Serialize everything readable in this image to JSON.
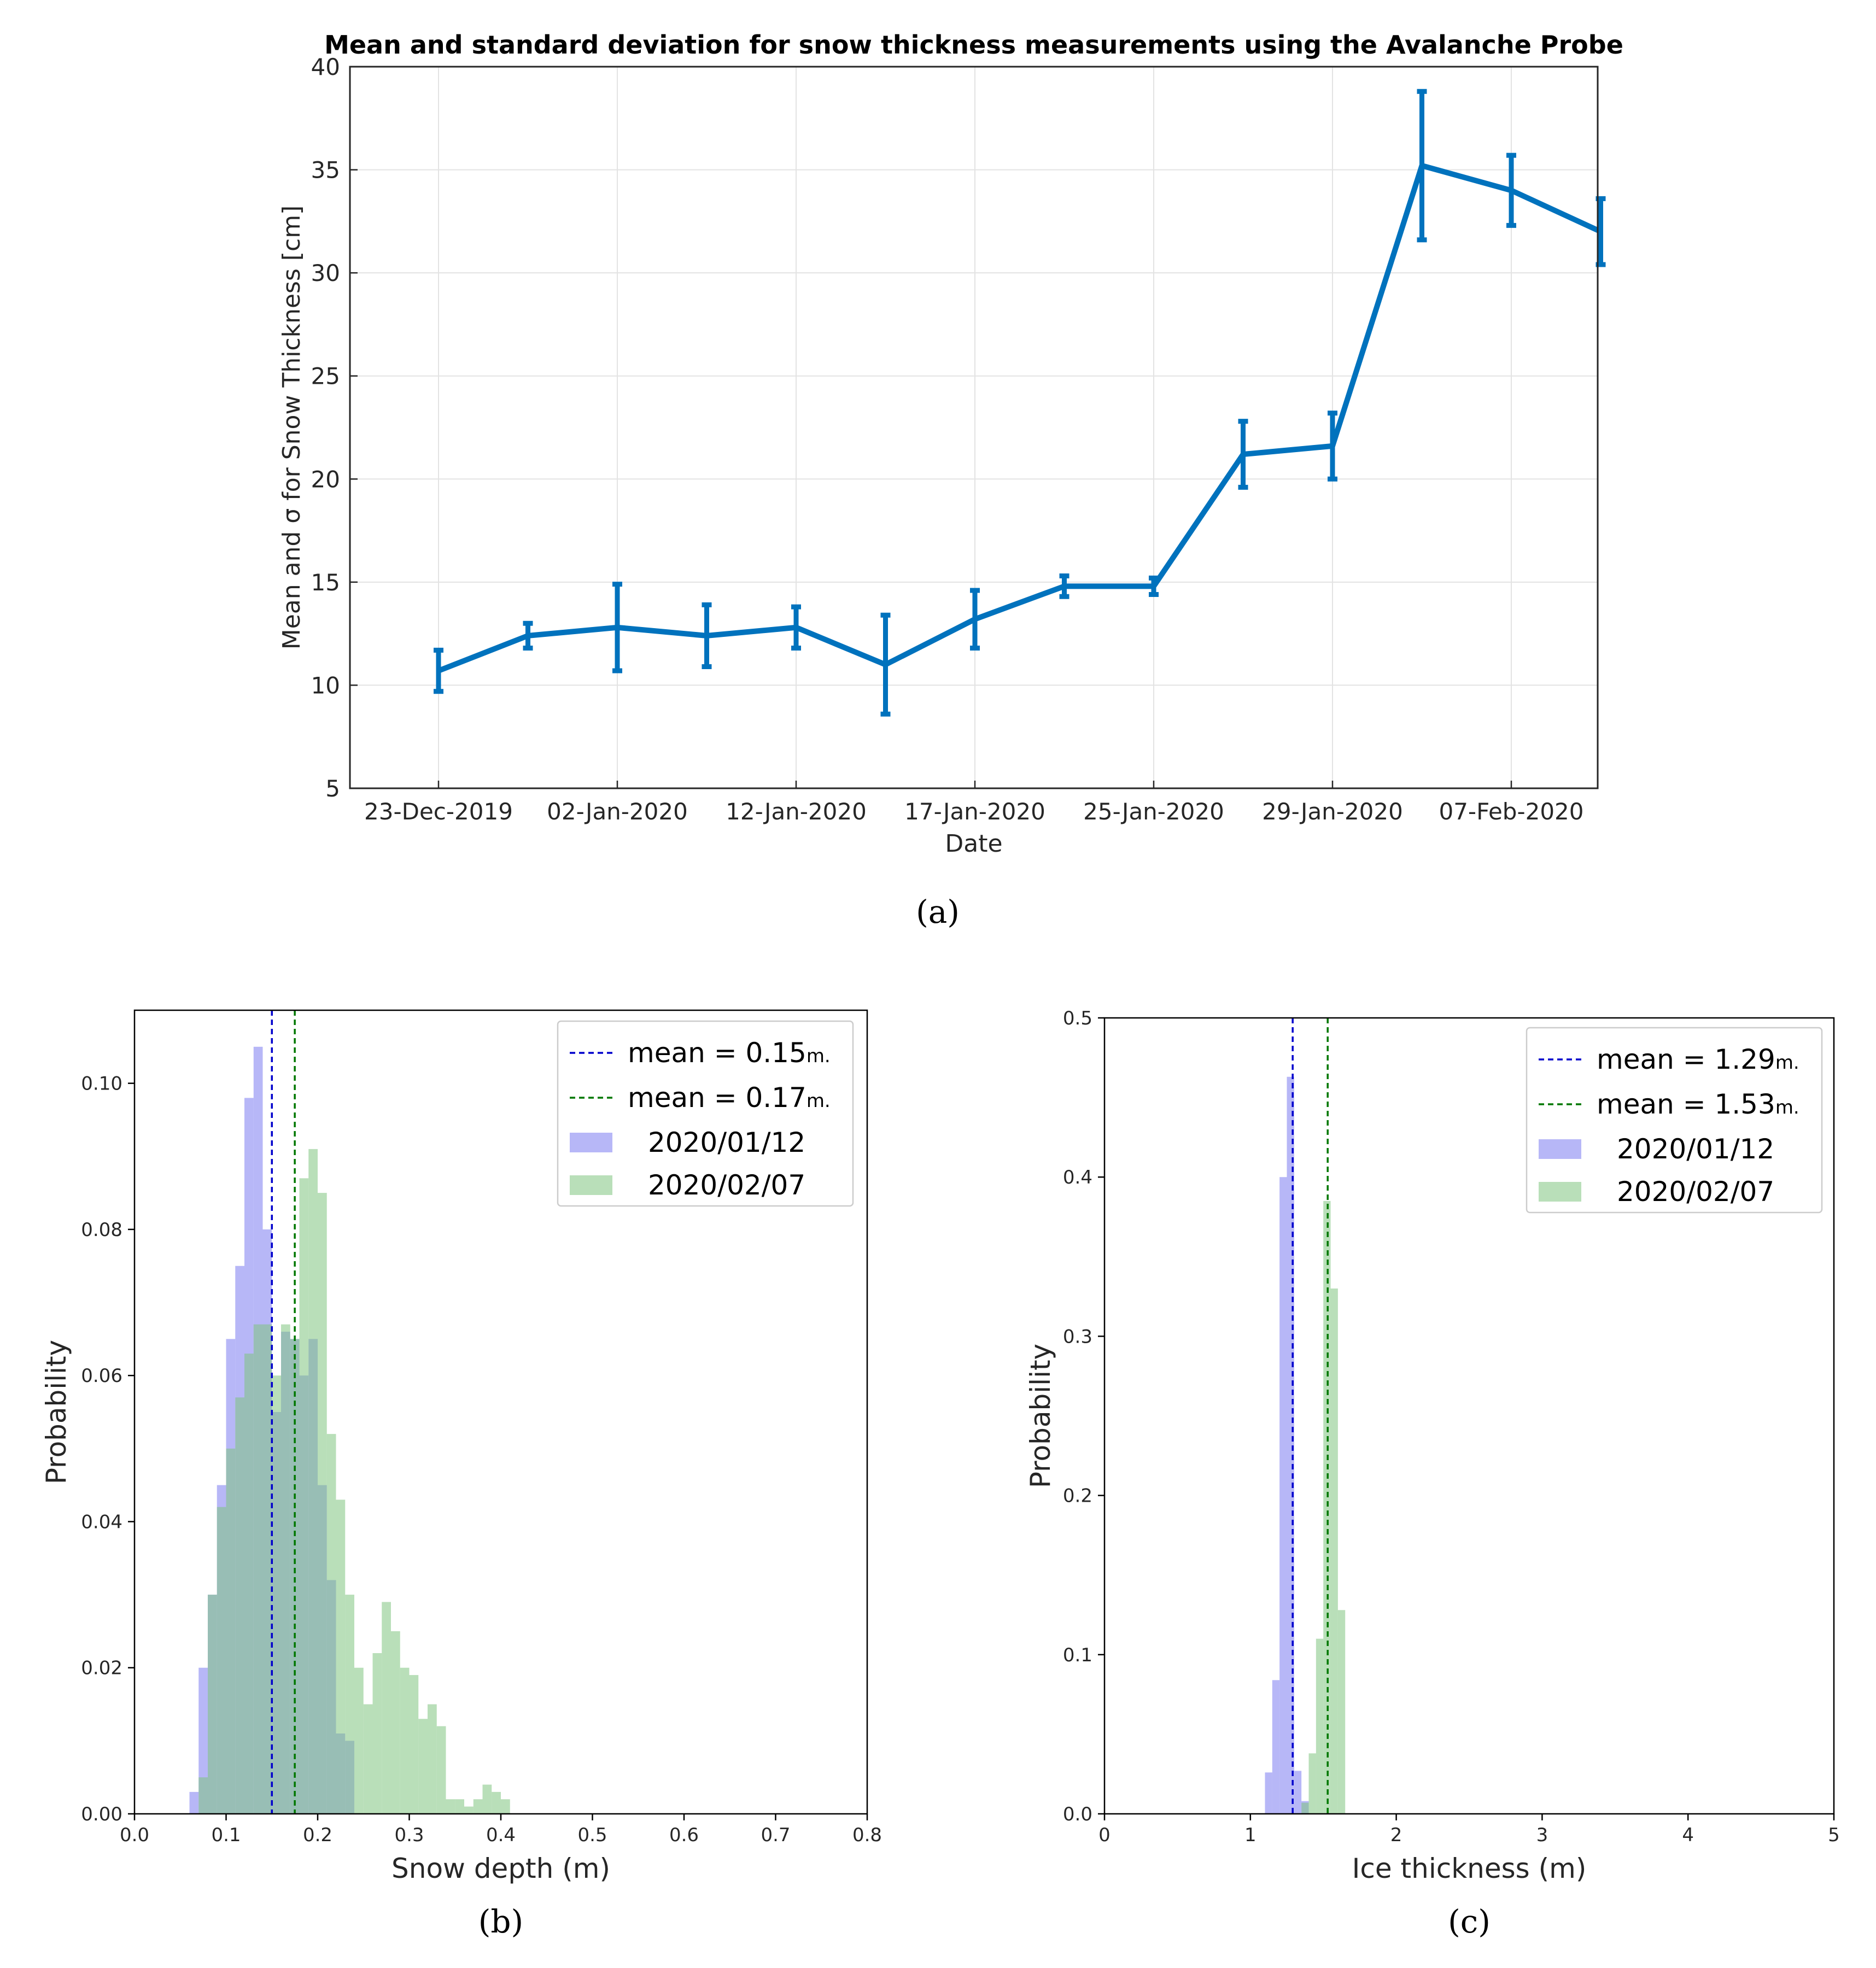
{
  "chart_data": [
    {
      "type": "line",
      "title": "Mean and standard deviation for snow thickness measurements using the Avalanche Probe",
      "xlabel": "Date",
      "ylabel": "Mean and σ for Snow Thickness [cm]",
      "ylim": [
        5,
        40
      ],
      "yticks": [
        5,
        10,
        15,
        20,
        25,
        30,
        35,
        40
      ],
      "xtick_labels": [
        "23-Dec-2019",
        "02-Jan-2020",
        "12-Jan-2020",
        "17-Jan-2020",
        "25-Jan-2020",
        "29-Jan-2020",
        "07-Feb-2020"
      ],
      "grid": true,
      "series": [
        {
          "color": "#0072bd",
          "points": [
            {
              "i": 0,
              "mean": 10.7,
              "sd": 1.0
            },
            {
              "i": 1,
              "mean": 12.4,
              "sd": 0.6
            },
            {
              "i": 2,
              "mean": 12.8,
              "sd": 2.1
            },
            {
              "i": 3,
              "mean": 12.4,
              "sd": 1.5
            },
            {
              "i": 4,
              "mean": 12.8,
              "sd": 1.0
            },
            {
              "i": 5,
              "mean": 11.0,
              "sd": 2.4
            },
            {
              "i": 6,
              "mean": 13.2,
              "sd": 1.4
            },
            {
              "i": 7,
              "mean": 14.8,
              "sd": 0.5
            },
            {
              "i": 8,
              "mean": 14.8,
              "sd": 0.4
            },
            {
              "i": 9,
              "mean": 21.2,
              "sd": 1.6
            },
            {
              "i": 10,
              "mean": 21.6,
              "sd": 1.6
            },
            {
              "i": 11,
              "mean": 35.2,
              "sd": 3.6
            },
            {
              "i": 12,
              "mean": 34.0,
              "sd": 1.7
            },
            {
              "i": 13,
              "mean": 32.0,
              "sd": 1.6
            }
          ]
        }
      ],
      "caption": "(a)"
    },
    {
      "type": "histogram",
      "xlabel": "Snow depth (m)",
      "ylabel": "Probability",
      "xlim": [
        0.0,
        0.8
      ],
      "ylim": [
        0.0,
        0.11
      ],
      "xticks": [
        "0.0",
        "0.1",
        "0.2",
        "0.3",
        "0.4",
        "0.5",
        "0.6",
        "0.7",
        "0.8"
      ],
      "yticks": [
        "0.00",
        "0.02",
        "0.04",
        "0.06",
        "0.08",
        "0.10"
      ],
      "legend_position": "upper right",
      "bin_width": 0.01,
      "series": [
        {
          "name": "2020/01/12",
          "color": "#7b7bf0",
          "bin_starts": [
            0.06,
            0.07,
            0.08,
            0.09,
            0.1,
            0.11,
            0.12,
            0.13,
            0.14,
            0.15,
            0.16,
            0.17,
            0.18,
            0.19,
            0.2,
            0.21,
            0.22,
            0.23
          ],
          "values": [
            0.003,
            0.02,
            0.03,
            0.045,
            0.065,
            0.075,
            0.098,
            0.105,
            0.08,
            0.055,
            0.066,
            0.065,
            0.06,
            0.065,
            0.045,
            0.032,
            0.011,
            0.01
          ]
        },
        {
          "name": "2020/02/07",
          "color": "#80c580",
          "bin_starts": [
            0.07,
            0.08,
            0.09,
            0.1,
            0.11,
            0.12,
            0.13,
            0.14,
            0.15,
            0.16,
            0.17,
            0.18,
            0.19,
            0.2,
            0.21,
            0.22,
            0.23,
            0.24,
            0.25,
            0.26,
            0.27,
            0.28,
            0.29,
            0.3,
            0.31,
            0.32,
            0.33,
            0.34,
            0.35,
            0.36,
            0.37,
            0.38,
            0.39,
            0.4
          ],
          "values": [
            0.005,
            0.03,
            0.042,
            0.05,
            0.057,
            0.063,
            0.067,
            0.067,
            0.06,
            0.067,
            0.065,
            0.087,
            0.091,
            0.085,
            0.052,
            0.043,
            0.03,
            0.02,
            0.015,
            0.022,
            0.029,
            0.025,
            0.02,
            0.019,
            0.013,
            0.015,
            0.012,
            0.002,
            0.002,
            0.001,
            0.002,
            0.004,
            0.003,
            0.002
          ]
        }
      ],
      "mean_lines": [
        {
          "value": 0.15,
          "label": "mean = 0.15",
          "unit": "m.",
          "color": "#0000cc"
        },
        {
          "value": 0.175,
          "label": "mean = 0.17",
          "unit": "m.",
          "color": "#007700"
        }
      ],
      "caption": "(b)"
    },
    {
      "type": "histogram",
      "xlabel": "Ice thickness (m)",
      "ylabel": "Probability",
      "xlim": [
        0,
        5
      ],
      "ylim": [
        0.0,
        0.5
      ],
      "xticks": [
        "0",
        "1",
        "2",
        "3",
        "4",
        "5"
      ],
      "yticks": [
        "0.0",
        "0.1",
        "0.2",
        "0.3",
        "0.4",
        "0.5"
      ],
      "legend_position": "upper right",
      "bin_width": 0.05,
      "series": [
        {
          "name": "2020/01/12",
          "color": "#7b7bf0",
          "bin_starts": [
            1.1,
            1.15,
            1.2,
            1.25,
            1.3,
            1.35
          ],
          "values": [
            0.026,
            0.084,
            0.4,
            0.463,
            0.027,
            0.008
          ]
        },
        {
          "name": "2020/02/07",
          "color": "#80c580",
          "bin_starts": [
            1.35,
            1.4,
            1.45,
            1.5,
            1.55,
            1.6
          ],
          "values": [
            0.007,
            0.038,
            0.11,
            0.385,
            0.33,
            0.128
          ]
        }
      ],
      "mean_lines": [
        {
          "value": 1.29,
          "label": "mean = 1.29",
          "unit": "m.",
          "color": "#0000cc"
        },
        {
          "value": 1.53,
          "label": "mean = 1.53",
          "unit": "m.",
          "color": "#007700"
        }
      ],
      "caption": "(c)"
    }
  ]
}
